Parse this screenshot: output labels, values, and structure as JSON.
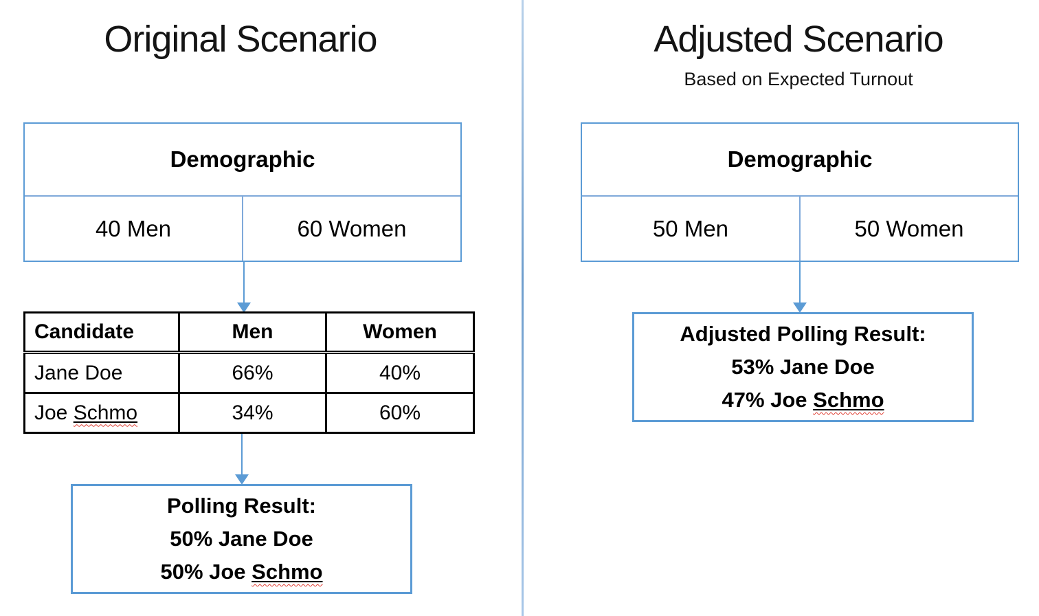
{
  "colors": {
    "accent_blue": "#5b9bd5",
    "inner_divider_blue": "#7fa9da",
    "page_divider_blue": "#8fb3d9",
    "table_border": "#000000",
    "spellcheck_red": "#e03c31"
  },
  "left_panel": {
    "title": "Original Scenario",
    "demographic_box": {
      "header": "Demographic",
      "cells": [
        "40 Men",
        "60 Women"
      ]
    },
    "candidate_table": {
      "headers": [
        "Candidate",
        "Men",
        "Women"
      ],
      "rows": [
        {
          "candidate": "Jane Doe",
          "candidate_underlined": "",
          "men": "66%",
          "women": "40%"
        },
        {
          "candidate": "Joe ",
          "candidate_underlined": "Schmo",
          "men": "34%",
          "women": "60%"
        }
      ]
    },
    "result_box": {
      "title": "Polling Result:",
      "line2": "50% Jane Doe",
      "line3_prefix": "50% Joe ",
      "line3_underlined": "Schmo"
    }
  },
  "right_panel": {
    "title": "Adjusted Scenario",
    "subtitle": "Based on Expected Turnout",
    "demographic_box": {
      "header": "Demographic",
      "cells": [
        "50 Men",
        "50 Women"
      ]
    },
    "result_box": {
      "title": "Adjusted Polling Result:",
      "line2": "53% Jane Doe",
      "line3_prefix": "47% Joe ",
      "line3_underlined": "Schmo"
    }
  }
}
